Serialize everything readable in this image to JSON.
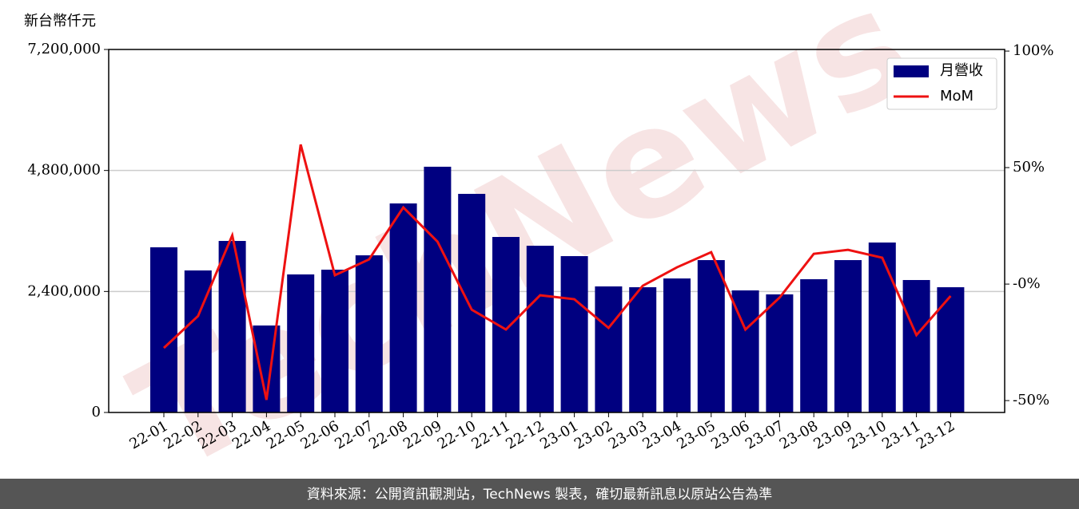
{
  "chart_data": {
    "type": "bar-line",
    "y_axis_label": "新台幣仟元",
    "watermark": "TechNews",
    "footer": "資料來源：公開資訊觀測站，TechNews 製表，確切最新訊息以原站公告為準",
    "categories": [
      "22-01",
      "22-02",
      "22-03",
      "22-04",
      "22-05",
      "22-06",
      "22-07",
      "22-08",
      "22-09",
      "22-10",
      "22-11",
      "22-12",
      "23-01",
      "23-02",
      "23-03",
      "23-04",
      "23-05",
      "23-06",
      "23-07",
      "23-08",
      "23-09",
      "23-10",
      "23-11",
      "23-12"
    ],
    "series": [
      {
        "name": "月營收",
        "type": "bar",
        "color": "#000080",
        "axis": "y",
        "values": [
          3276000,
          2817000,
          3402000,
          1725000,
          2738000,
          2832000,
          3117000,
          4146000,
          4874000,
          4336000,
          3481000,
          3307000,
          3101000,
          2500000,
          2484000,
          2658000,
          3022000,
          2421000,
          2342000,
          2643000,
          3022000,
          3371000,
          2627000,
          2484000
        ]
      },
      {
        "name": "MoM",
        "type": "line",
        "color": "#ee1111",
        "axis": "y2",
        "values": [
          -27.4,
          -13.7,
          20.9,
          -49.7,
          59.9,
          3.8,
          10.6,
          32.9,
          18.2,
          -11,
          -19.5,
          -4.8,
          -6.5,
          -18.8,
          -0.7,
          7.2,
          13.7,
          -19.5,
          -5.8,
          13,
          14.7,
          11.3,
          -21.9,
          -5.1
        ]
      }
    ],
    "ylim": [
      0,
      7200000
    ],
    "yticks": [
      0,
      {
        "value": 2400000,
        "label": "2,400,000"
      },
      {
        "value": 4800000,
        "label": "4,800,000"
      },
      {
        "value": 7200000,
        "label": "7,200,000"
      }
    ],
    "y2lim": [
      -55.1,
      100.7
    ],
    "y2ticks": [
      {
        "value": -50,
        "label": "-50%"
      },
      {
        "value": 0,
        "label": "-0%"
      },
      {
        "value": 50,
        "label": "50%"
      },
      {
        "value": 100,
        "label": "100%"
      }
    ],
    "grid": true,
    "legend": "upper right"
  }
}
